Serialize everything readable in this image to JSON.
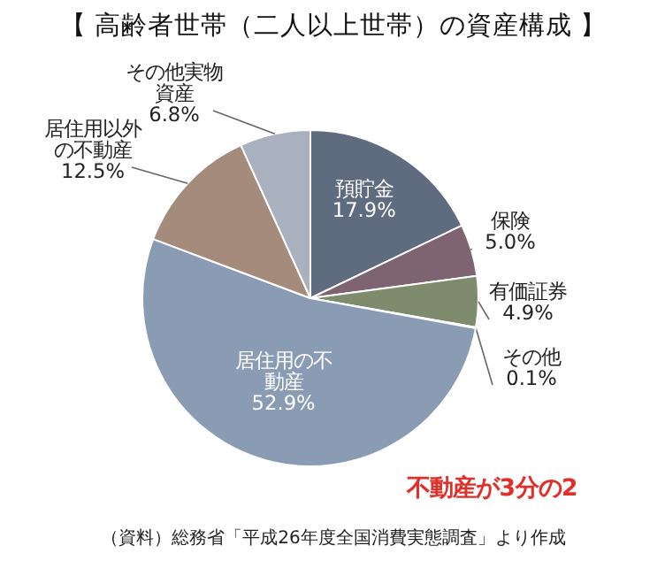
{
  "chart_data": {
    "type": "pie",
    "title": "【 高齢者世帯（二人以上世帯）の資産構成 】",
    "categories": [
      "預貯金",
      "保険",
      "有価証券",
      "その他",
      "居住用の不動産",
      "居住用以外の不動産",
      "その他実物資産"
    ],
    "values": [
      17.9,
      5.0,
      4.9,
      0.1,
      52.9,
      12.5,
      6.8
    ],
    "value_labels": [
      "17.9%",
      "5.0%",
      "4.9%",
      "0.1%",
      "52.9%",
      "12.5%",
      "6.8%"
    ],
    "colors": [
      "#5f6b7e",
      "#7e6470",
      "#7f8b6d",
      "#c9c9c9",
      "#8a9cb4",
      "#a48b7b",
      "#a9b1bf"
    ],
    "annotations": [
      "不動産が3分の2",
      "（資料）総務省「平成26年度全国消費実態調査」より作成"
    ]
  }
}
